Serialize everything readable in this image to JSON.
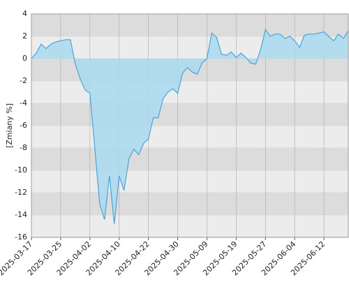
{
  "chart_data": {
    "type": "area",
    "y_label": "[Zmiany %]",
    "categories": [
      "2025-03-17",
      null,
      null,
      null,
      null,
      null,
      "2025-03-25",
      null,
      null,
      null,
      null,
      null,
      "2025-04-02",
      null,
      null,
      null,
      null,
      null,
      "2025-04-10",
      null,
      null,
      null,
      null,
      null,
      "2025-04-22",
      null,
      null,
      null,
      null,
      null,
      "2025-04-30",
      null,
      null,
      null,
      null,
      null,
      "2025-05-09",
      null,
      null,
      null,
      null,
      null,
      "2025-05-19",
      null,
      null,
      null,
      null,
      null,
      "2025-05-27",
      null,
      null,
      null,
      null,
      null,
      "2025-06-04",
      null,
      null,
      null,
      null,
      null,
      "2025-06-12",
      null,
      null,
      null,
      null,
      null
    ],
    "values": [
      0.0,
      0.5,
      1.3,
      0.9,
      1.3,
      1.5,
      1.6,
      1.7,
      1.7,
      -0.5,
      -1.8,
      -2.8,
      -3.1,
      -8.0,
      -13.0,
      -14.4,
      -10.5,
      -14.8,
      -10.5,
      -11.8,
      -9.0,
      -8.1,
      -8.6,
      -7.6,
      -7.2,
      -5.3,
      -5.3,
      -3.6,
      -3.0,
      -2.7,
      -3.1,
      -1.3,
      -0.8,
      -1.2,
      -1.4,
      -0.4,
      0.0,
      2.3,
      1.9,
      0.4,
      0.3,
      0.6,
      0.1,
      0.5,
      0.1,
      -0.4,
      -0.5,
      0.8,
      2.6,
      2.0,
      2.2,
      2.2,
      1.8,
      2.0,
      1.6,
      1.0,
      2.1,
      2.2,
      2.2,
      2.3,
      2.4,
      2.0,
      1.6,
      2.2,
      1.8,
      2.5
    ],
    "line_color": "#4aa3df",
    "fill_color": "#a9dbef",
    "ylim": [
      -16,
      4
    ],
    "yticks": [
      -16,
      -14,
      -12,
      -10,
      -8,
      -6,
      -4,
      -2,
      0,
      2,
      4
    ],
    "grid": true
  }
}
